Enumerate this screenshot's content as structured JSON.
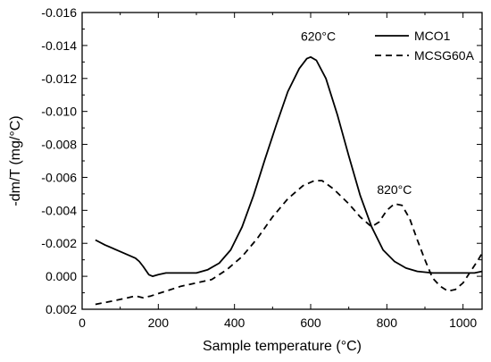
{
  "chart_data": {
    "type": "line",
    "xlabel": "Sample temperature (°C)",
    "ylabel": "-dm/T (mg/°C)",
    "xlim": [
      0,
      1050
    ],
    "ylim": [
      0.002,
      -0.016
    ],
    "x_ticks": [
      0,
      200,
      400,
      600,
      800,
      1000
    ],
    "x_tick_labels": [
      "0",
      "200",
      "400",
      "600",
      "800",
      "1000"
    ],
    "y_ticks": [
      -0.016,
      -0.014,
      -0.012,
      -0.01,
      -0.008,
      -0.006,
      -0.004,
      -0.002,
      0.0,
      0.002
    ],
    "y_tick_labels": [
      "-0.016",
      "-0.014",
      "-0.012",
      "-0.010",
      "-0.008",
      "-0.006",
      "-0.004",
      "-0.002",
      "0.000",
      "0.002"
    ],
    "grid": false,
    "legend_position": "top-right",
    "series": [
      {
        "name": "MCO1",
        "style": "solid",
        "color": "#000000",
        "points": [
          [
            35,
            -0.0022
          ],
          [
            60,
            -0.0019
          ],
          [
            100,
            -0.0015
          ],
          [
            140,
            -0.0011
          ],
          [
            150,
            -0.0009
          ],
          [
            160,
            -0.0006
          ],
          [
            175,
            -0.0001
          ],
          [
            185,
            0.0
          ],
          [
            200,
            -0.0001
          ],
          [
            220,
            -0.0002
          ],
          [
            260,
            -0.0002
          ],
          [
            300,
            -0.0002
          ],
          [
            330,
            -0.0004
          ],
          [
            360,
            -0.0008
          ],
          [
            390,
            -0.0016
          ],
          [
            420,
            -0.003
          ],
          [
            450,
            -0.0049
          ],
          [
            480,
            -0.0071
          ],
          [
            510,
            -0.0092
          ],
          [
            540,
            -0.0112
          ],
          [
            570,
            -0.0126
          ],
          [
            590,
            -0.0132
          ],
          [
            600,
            -0.0133
          ],
          [
            615,
            -0.0131
          ],
          [
            640,
            -0.012
          ],
          [
            670,
            -0.0098
          ],
          [
            700,
            -0.0073
          ],
          [
            730,
            -0.0049
          ],
          [
            760,
            -0.003
          ],
          [
            790,
            -0.0016
          ],
          [
            820,
            -0.0009
          ],
          [
            850,
            -0.0005
          ],
          [
            880,
            -0.0003
          ],
          [
            920,
            -0.0002
          ],
          [
            960,
            -0.0002
          ],
          [
            1000,
            -0.0002
          ],
          [
            1030,
            -0.0002
          ],
          [
            1050,
            -0.0003
          ]
        ]
      },
      {
        "name": "MCSG60A",
        "style": "dashed",
        "color": "#000000",
        "points": [
          [
            35,
            0.0017
          ],
          [
            80,
            0.0015
          ],
          [
            120,
            0.0013
          ],
          [
            140,
            0.0012
          ],
          [
            160,
            0.0013
          ],
          [
            180,
            0.0012
          ],
          [
            220,
            0.0009
          ],
          [
            260,
            0.0006
          ],
          [
            300,
            0.0004
          ],
          [
            340,
            0.0002
          ],
          [
            380,
            -0.0004
          ],
          [
            420,
            -0.0012
          ],
          [
            460,
            -0.0023
          ],
          [
            500,
            -0.0036
          ],
          [
            540,
            -0.0047
          ],
          [
            580,
            -0.0055
          ],
          [
            610,
            -0.0058
          ],
          [
            630,
            -0.0058
          ],
          [
            660,
            -0.0053
          ],
          [
            700,
            -0.0044
          ],
          [
            730,
            -0.0036
          ],
          [
            760,
            -0.003
          ],
          [
            780,
            -0.0033
          ],
          [
            800,
            -0.004
          ],
          [
            820,
            -0.0044
          ],
          [
            840,
            -0.0043
          ],
          [
            860,
            -0.0035
          ],
          [
            880,
            -0.0022
          ],
          [
            900,
            -0.001
          ],
          [
            920,
            0.0001
          ],
          [
            940,
            0.0006
          ],
          [
            960,
            0.0009
          ],
          [
            980,
            0.0008
          ],
          [
            1000,
            0.0004
          ],
          [
            1020,
            -0.0003
          ],
          [
            1040,
            -0.001
          ],
          [
            1050,
            -0.0014
          ]
        ]
      }
    ],
    "annotations": [
      {
        "text": "620°C",
        "x": 620,
        "y": -0.0143
      },
      {
        "text": "820°C",
        "x": 820,
        "y": -0.005
      }
    ]
  }
}
